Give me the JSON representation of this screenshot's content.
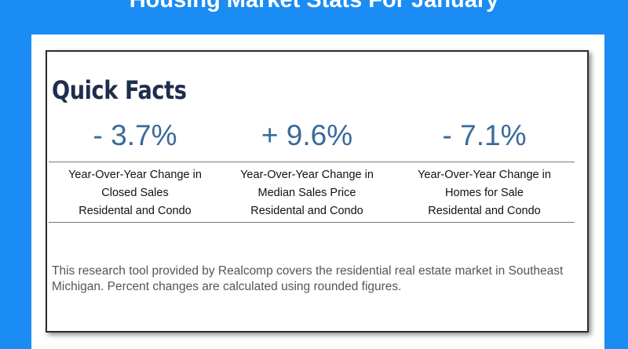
{
  "header": {
    "title": "Housing Market Stats For January"
  },
  "card": {
    "heading": "Quick Facts",
    "facts": [
      {
        "value": "- 3.7%",
        "label": [
          "Year-Over-Year Change in",
          "Closed Sales",
          "Residental and Condo"
        ]
      },
      {
        "value": "+ 9.6%",
        "label": [
          "Year-Over-Year Change in",
          "Median Sales Price",
          "Residental and Condo"
        ]
      },
      {
        "value": "- 7.1%",
        "label": [
          "Year-Over-Year Change in",
          "Homes for Sale",
          "Residental and Condo"
        ]
      }
    ],
    "footnote": "This research tool provided by Realcomp covers the residential real estate market in Southeast Michigan. Percent changes are calculated using rounded figures."
  }
}
